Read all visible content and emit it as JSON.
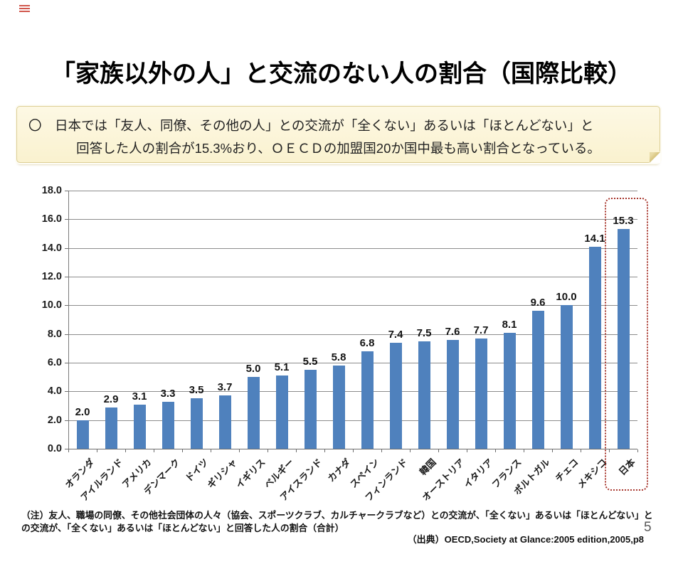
{
  "page": {
    "number": "5"
  },
  "title": "「家族以外の人」と交流のない人の割合（国際比較）",
  "note_box": {
    "line1": "〇　日本では「友人、同僚、その他の人」との交流が「全くない」あるいは「ほとんどない」と",
    "line2": "回答した人の割合が15.3%おり、ＯＥＣＤの加盟国20か国中最も高い割合となっている。"
  },
  "chart_data": {
    "type": "bar",
    "categories": [
      "オランダ",
      "アイルランド",
      "アメリカ",
      "デンマーク",
      "ドイツ",
      "ギリシャ",
      "イギリス",
      "ベルギー",
      "アイスランド",
      "カナダ",
      "スペイン",
      "フィンランド",
      "韓国",
      "オーストリア",
      "イタリア",
      "フランス",
      "ポルトガル",
      "チェコ",
      "メキシコ",
      "日本"
    ],
    "values": [
      2.0,
      2.9,
      3.1,
      3.3,
      3.5,
      3.7,
      5.0,
      5.1,
      5.5,
      5.8,
      6.8,
      7.4,
      7.5,
      7.6,
      7.7,
      8.1,
      9.6,
      10.0,
      14.1,
      15.3
    ],
    "title": "",
    "xlabel": "",
    "ylabel": "",
    "ylim": [
      0,
      18
    ],
    "ytick_step": 2,
    "ytick_labels": [
      "0.0",
      "2.0",
      "4.0",
      "6.0",
      "8.0",
      "10.0",
      "12.0",
      "14.0",
      "16.0",
      "18.0"
    ],
    "grid": true,
    "legend": false,
    "bar_color": "#4f81bd",
    "value_labels_shown": true,
    "highlight_category": "日本",
    "highlight_box_color": "#a8372e"
  },
  "footnote": {
    "line1": "（注）友人、職場の同僚、その他社会団体の人々（協会、スポーツクラブ、カルチャークラブなど）との交流が、「全くない」あるいは「ほとんどない」と",
    "line2": "の交流が、「全くない」あるいは「ほとんどない」と回答した人の割合（合計）"
  },
  "source": "（出典）OECD,Society at Glance:2005 edition,2005,p8"
}
